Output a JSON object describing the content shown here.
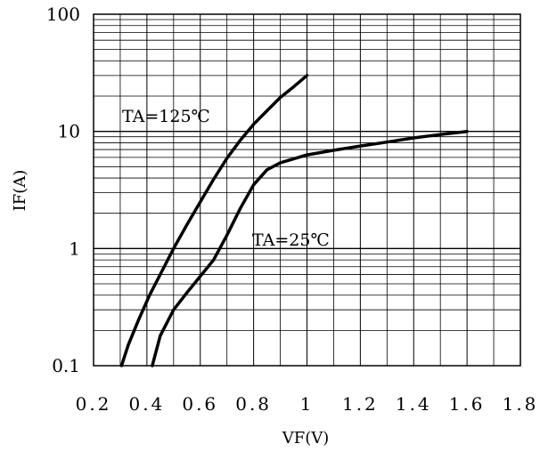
{
  "chart_data": {
    "type": "line",
    "xlabel": "VF(V)",
    "ylabel": "IF(A)",
    "xlim": [
      0.2,
      1.8
    ],
    "ylim": [
      0.1,
      100
    ],
    "y_scale": "log",
    "grid": true,
    "x_ticks": [
      "0.2",
      "0.4",
      "0.6",
      "0.8",
      "1",
      "1.2",
      "1.4",
      "1.6",
      "1.8"
    ],
    "y_ticks": [
      "0.1",
      "1",
      "10",
      "100"
    ],
    "x_tick_values": [
      0.2,
      0.4,
      0.6,
      0.8,
      1.0,
      1.2,
      1.4,
      1.6,
      1.8
    ],
    "y_tick_values": [
      0.1,
      1,
      10,
      100
    ],
    "series": [
      {
        "label": "TA=125℃",
        "color": "#000000",
        "points": [
          [
            0.305,
            0.1
          ],
          [
            0.33,
            0.15
          ],
          [
            0.37,
            0.25
          ],
          [
            0.41,
            0.4
          ],
          [
            0.45,
            0.6
          ],
          [
            0.5,
            1.0
          ],
          [
            0.55,
            1.6
          ],
          [
            0.6,
            2.5
          ],
          [
            0.65,
            3.9
          ],
          [
            0.7,
            5.9
          ],
          [
            0.75,
            8.4
          ],
          [
            0.8,
            11.5
          ],
          [
            0.85,
            15
          ],
          [
            0.9,
            19.5
          ],
          [
            0.95,
            24
          ],
          [
            1.0,
            30
          ]
        ]
      },
      {
        "label": "TA=25℃",
        "color": "#000000",
        "points": [
          [
            0.42,
            0.1
          ],
          [
            0.45,
            0.18
          ],
          [
            0.5,
            0.3
          ],
          [
            0.55,
            0.42
          ],
          [
            0.6,
            0.58
          ],
          [
            0.65,
            0.8
          ],
          [
            0.7,
            1.3
          ],
          [
            0.75,
            2.2
          ],
          [
            0.8,
            3.5
          ],
          [
            0.85,
            4.7
          ],
          [
            0.9,
            5.4
          ],
          [
            1.0,
            6.3
          ],
          [
            1.1,
            6.9
          ],
          [
            1.2,
            7.5
          ],
          [
            1.3,
            8.1
          ],
          [
            1.4,
            8.8
          ],
          [
            1.5,
            9.4
          ],
          [
            1.6,
            10
          ]
        ]
      }
    ]
  }
}
